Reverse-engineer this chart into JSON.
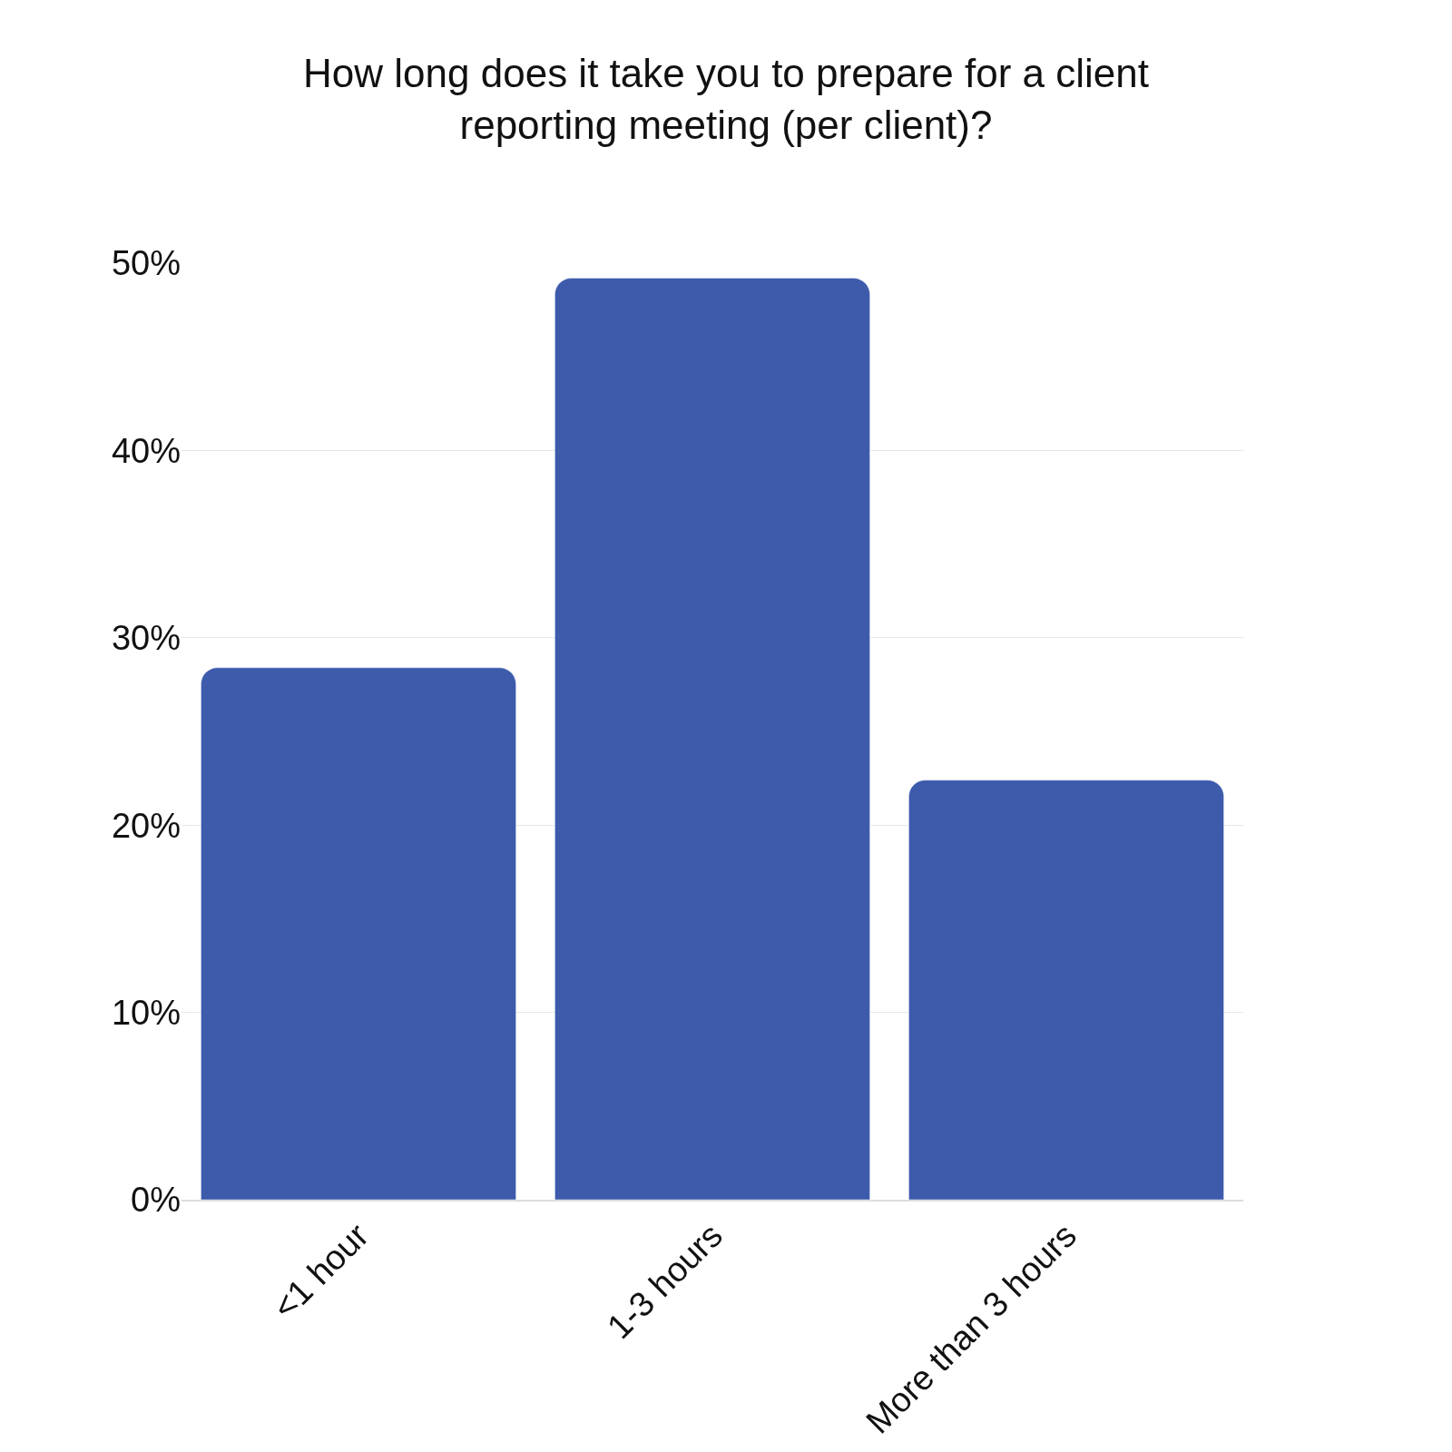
{
  "chart_data": {
    "type": "bar",
    "title": "How long does it take you to prepare for a client reporting meeting (per client)?",
    "categories": [
      "<1 hour",
      "1-3 hours",
      "More than 3 hours"
    ],
    "values": [
      28.4,
      49.2,
      22.4
    ],
    "color": "#3d5aab",
    "ylim": [
      0,
      50
    ],
    "yticks": [
      {
        "value": 0,
        "label": "0%"
      },
      {
        "value": 10,
        "label": "10%"
      },
      {
        "value": 20,
        "label": "20%"
      },
      {
        "value": 30,
        "label": "30%"
      },
      {
        "value": 40,
        "label": "40%"
      },
      {
        "value": 50,
        "label": "50%"
      }
    ],
    "grid": "y",
    "legend": false
  }
}
